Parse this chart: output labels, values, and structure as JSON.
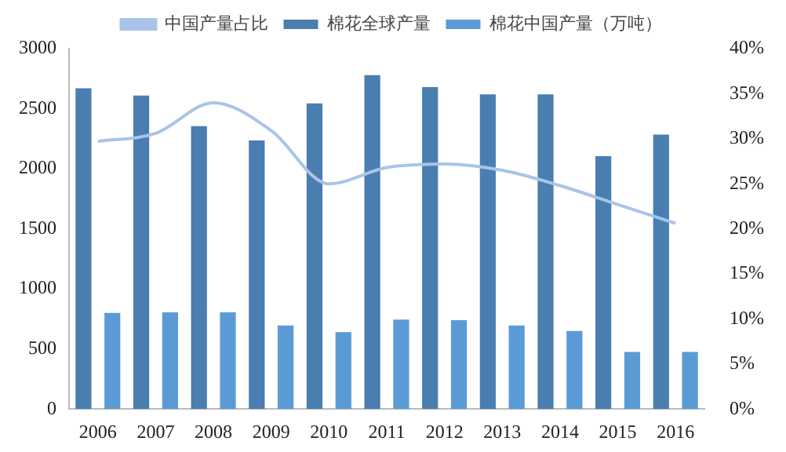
{
  "chart_data": {
    "type": "bar",
    "categories": [
      "2006",
      "2007",
      "2008",
      "2009",
      "2010",
      "2011",
      "2012",
      "2013",
      "2014",
      "2015",
      "2016"
    ],
    "series": [
      {
        "name": "棉花全球产量",
        "color": "#4a7eb0",
        "values": [
          2670,
          2610,
          2355,
          2235,
          2545,
          2780,
          2680,
          2620,
          2620,
          2105,
          2285
        ]
      },
      {
        "name": "棉花中国产量（万吨）",
        "color": "#5b9bd5",
        "values": [
          800,
          805,
          805,
          695,
          640,
          745,
          740,
          695,
          650,
          475,
          475
        ]
      },
      {
        "name": "中国产量占比",
        "type": "line",
        "axis": "y2",
        "color": "#a9c4e8",
        "values": [
          29.7,
          30.6,
          34.0,
          30.9,
          25.0,
          26.8,
          27.2,
          26.5,
          24.8,
          22.7,
          20.6
        ]
      }
    ],
    "ylim": [
      0,
      3000
    ],
    "yticks": [
      0,
      500,
      1000,
      1500,
      2000,
      2500,
      3000
    ],
    "y2lim": [
      0,
      40
    ],
    "y2ticks": [
      {
        "value": 0,
        "label": "0%"
      },
      {
        "value": 5,
        "label": "5%"
      },
      {
        "value": 10,
        "label": "10%"
      },
      {
        "value": 15,
        "label": "15%"
      },
      {
        "value": 20,
        "label": "20%"
      },
      {
        "value": 25,
        "label": "25%"
      },
      {
        "value": 30,
        "label": "30%"
      },
      {
        "value": 35,
        "label": "35%"
      },
      {
        "value": 40,
        "label": "40%"
      }
    ],
    "grid": false,
    "legend": "top",
    "marker": "none"
  }
}
